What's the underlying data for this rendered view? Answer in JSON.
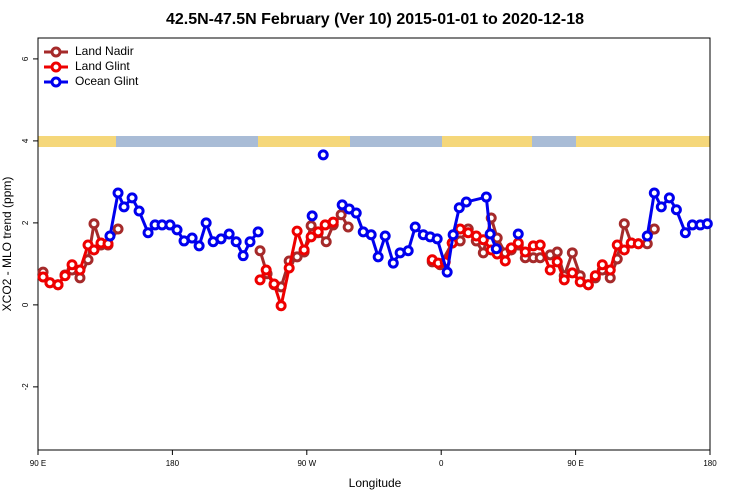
{
  "chart_data": {
    "type": "line",
    "title": "42.5N-47.5N February (Ver 10)   2015-01-01 to 2020-12-18",
    "x_label": "Longitude",
    "y_label": "XCO2 - MLO trend (ppm)",
    "xlim": [
      90,
      540
    ],
    "xticks": [
      {
        "value": 90,
        "label": "90 E"
      },
      {
        "value": 180,
        "label": "180"
      },
      {
        "value": 270,
        "label": "90 W"
      },
      {
        "value": 360,
        "label": "0"
      },
      {
        "value": 450,
        "label": "90 E"
      },
      {
        "value": 540,
        "label": "180"
      }
    ],
    "ylim": [
      -3.54,
      6.51
    ],
    "yticks": [
      -2,
      0,
      2,
      4,
      6
    ],
    "legend": "top-left",
    "series": [
      {
        "name": "Land Nadir",
        "color": "#a52a2a",
        "x": [
          93.4,
          98,
          103.4,
          108.1,
          112.8,
          118.1,
          123.5,
          127.5,
          132.2,
          136.9,
          143.6,
          null,
          238.7,
          243.4,
          248.1,
          252.8,
          258.2,
          263.5,
          268.2,
          272.9,
          277.6,
          283,
          287.7,
          293,
          297.7,
          null,
          354,
          359.3,
          367.4,
          372.7,
          378.1,
          383.5,
          388.2,
          393.5,
          397.5,
          402.9,
          406.9,
          411.6,
          416.3,
          421.7,
          426.3,
          433,
          437.7,
          442.4,
          447.8,
          453.1,
          458.5,
          463.2,
          467.9,
          473.2,
          477.9,
          482.6,
          487.3,
          492,
          498,
          502.7
        ],
        "values": [
          0.8,
          0.54,
          0.49,
          0.73,
          0.85,
          0.66,
          1.1,
          1.98,
          1.46,
          1.46,
          1.85,
          null,
          1.32,
          0.76,
          0.49,
          0.44,
          1.07,
          1.17,
          1.29,
          1.93,
          1.76,
          1.54,
          1.95,
          2.2,
          1.9,
          null,
          1.05,
          0.98,
          1.51,
          1.56,
          1.85,
          1.56,
          1.27,
          2.12,
          1.63,
          1.27,
          1.34,
          1.46,
          1.15,
          1.15,
          1.15,
          1.22,
          1.29,
          0.71,
          1.27,
          0.71,
          0.49,
          0.66,
          0.85,
          0.66,
          1.12,
          1.98,
          1.51,
          1.49,
          1.49,
          1.85
        ]
      },
      {
        "name": "Land Glint",
        "color": "#ee0000",
        "x": [
          93.4,
          98,
          103.4,
          108.1,
          112.8,
          118.1,
          123.5,
          127.5,
          132.2,
          136.9,
          null,
          238.7,
          242.8,
          248.1,
          252.8,
          258.2,
          263.5,
          268.2,
          272.9,
          277.6,
          282.3,
          287.7,
          null,
          354,
          358,
          362.7,
          367.4,
          372.7,
          378.1,
          383.5,
          388.2,
          393.5,
          397.5,
          402.9,
          406.9,
          411.6,
          416.3,
          421.7,
          426.3,
          433,
          437.7,
          442.4,
          447.8,
          453.1,
          458.5,
          463.2,
          467.9,
          473.2,
          477.9,
          482.6,
          487.3,
          492
        ],
        "values": [
          0.68,
          0.54,
          0.49,
          0.71,
          0.98,
          0.85,
          1.46,
          1.34,
          1.51,
          1.49,
          null,
          0.61,
          0.85,
          0.51,
          -0.02,
          0.9,
          1.8,
          1.34,
          1.66,
          1.78,
          1.95,
          2.02,
          null,
          1.1,
          1.02,
          1.05,
          1.51,
          1.85,
          1.76,
          1.68,
          1.59,
          1.34,
          1.24,
          1.07,
          1.39,
          1.51,
          1.29,
          1.44,
          1.46,
          0.85,
          1.05,
          0.61,
          0.78,
          0.56,
          0.49,
          0.71,
          0.98,
          0.85,
          1.46,
          1.34,
          1.51,
          1.49
        ]
      },
      {
        "name": "Ocean Glint",
        "color": "#0000ee",
        "x": [
          138.2,
          143.6,
          147.6,
          153,
          157.7,
          163.7,
          168.4,
          173.1,
          178.4,
          183.1,
          187.8,
          193.2,
          197.9,
          202.6,
          207.3,
          212.6,
          218,
          222.7,
          227.4,
          232,
          237.4,
          null,
          273.6,
          null,
          281,
          null,
          293.7,
          298.4,
          303.1,
          307.8,
          313.1,
          317.8,
          322.5,
          327.9,
          332.5,
          337.9,
          342.6,
          348,
          352.6,
          357.3,
          364,
          368,
          372.1,
          376.8,
          390.2,
          392.8,
          396.9,
          null,
          411.6,
          null,
          498,
          502.7,
          507.4,
          512.8,
          517.5,
          523.5,
          528.2,
          533.5,
          538.2
        ],
        "values": [
          1.68,
          2.73,
          2.39,
          2.61,
          2.29,
          1.76,
          1.95,
          1.95,
          1.95,
          1.83,
          1.56,
          1.63,
          1.44,
          2.0,
          1.54,
          1.61,
          1.73,
          1.54,
          1.2,
          1.54,
          1.78,
          null,
          2.17,
          null,
          3.66,
          null,
          2.44,
          2.34,
          2.24,
          1.78,
          1.71,
          1.17,
          1.68,
          1.02,
          1.27,
          1.32,
          1.9,
          1.71,
          1.66,
          1.61,
          0.8,
          1.71,
          2.37,
          2.51,
          2.63,
          1.73,
          1.37,
          null,
          1.73,
          null,
          1.68,
          2.73,
          2.39,
          2.61,
          2.32,
          1.76,
          1.95,
          1.95,
          1.98
        ]
      }
    ]
  }
}
